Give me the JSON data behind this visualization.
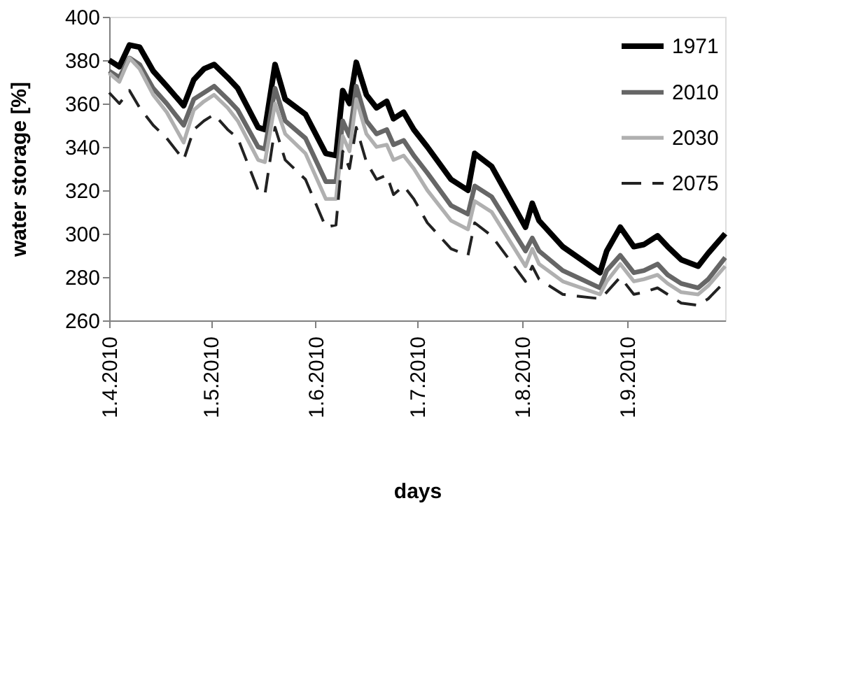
{
  "chart_data": {
    "type": "line",
    "xlabel": "days",
    "ylabel": "water storage [%]",
    "x": [
      "2010-04-01",
      "2010-04-04",
      "2010-04-07",
      "2010-04-10",
      "2010-04-14",
      "2010-04-18",
      "2010-04-23",
      "2010-04-26",
      "2010-04-29",
      "2010-05-02",
      "2010-05-06",
      "2010-05-09",
      "2010-05-15",
      "2010-05-17",
      "2010-05-20",
      "2010-05-23",
      "2010-05-29",
      "2010-06-04",
      "2010-06-07",
      "2010-06-09",
      "2010-06-11",
      "2010-06-13",
      "2010-06-16",
      "2010-06-19",
      "2010-06-22",
      "2010-06-24",
      "2010-06-27",
      "2010-06-30",
      "2010-07-04",
      "2010-07-11",
      "2010-07-16",
      "2010-07-18",
      "2010-07-23",
      "2010-08-02",
      "2010-08-04",
      "2010-08-06",
      "2010-08-13",
      "2010-08-24",
      "2010-08-26",
      "2010-08-30",
      "2010-09-03",
      "2010-09-06",
      "2010-09-10",
      "2010-09-13",
      "2010-09-17",
      "2010-09-22",
      "2010-09-25",
      "2010-09-30"
    ],
    "series": [
      {
        "name": "1971",
        "color": "#000000",
        "line_style": "solid",
        "values": [
          380,
          377,
          387,
          386,
          375,
          368,
          359,
          371,
          376,
          378,
          372,
          367,
          349,
          348,
          378,
          362,
          355,
          337,
          336,
          366,
          360,
          379,
          364,
          358,
          361,
          353,
          356,
          348,
          340,
          325,
          320,
          337,
          331,
          303,
          314,
          306,
          294,
          282,
          292,
          303,
          294,
          295,
          299,
          294,
          288,
          285,
          291,
          300
        ]
      },
      {
        "name": "2010",
        "color": "#666666",
        "line_style": "solid",
        "values": [
          375,
          372,
          381,
          378,
          367,
          360,
          350,
          362,
          365,
          368,
          362,
          357,
          340,
          339,
          367,
          352,
          344,
          324,
          324,
          352,
          345,
          368,
          352,
          346,
          348,
          341,
          343,
          336,
          328,
          313,
          309,
          322,
          317,
          292,
          298,
          292,
          283,
          275,
          283,
          290,
          282,
          283,
          286,
          281,
          277,
          275,
          279,
          289
        ]
      },
      {
        "name": "2030",
        "color": "#b0b0b0",
        "line_style": "solid",
        "values": [
          374,
          370,
          381,
          376,
          364,
          356,
          342,
          357,
          361,
          364,
          358,
          352,
          334,
          333,
          360,
          346,
          337,
          316,
          316,
          345,
          338,
          362,
          346,
          340,
          341,
          334,
          336,
          330,
          320,
          306,
          302,
          315,
          310,
          285,
          293,
          286,
          278,
          272,
          278,
          286,
          278,
          279,
          281,
          277,
          273,
          272,
          276,
          285
        ]
      },
      {
        "name": "2075",
        "color": "#222222",
        "line_style": "dashed",
        "values": [
          365,
          360,
          366,
          358,
          350,
          344,
          334,
          348,
          352,
          355,
          348,
          344,
          320,
          318,
          349,
          334,
          325,
          303,
          304,
          338,
          330,
          349,
          333,
          325,
          327,
          318,
          322,
          316,
          305,
          293,
          290,
          305,
          299,
          278,
          285,
          279,
          272,
          270,
          273,
          280,
          272,
          273,
          275,
          272,
          268,
          267,
          270,
          278
        ]
      }
    ],
    "xlim": [
      "2010-04-01",
      "2010-09-30"
    ],
    "xticks": [
      {
        "value": "2010-04-01",
        "label": "1.4.2010"
      },
      {
        "value": "2010-05-01",
        "label": "1.5.2010"
      },
      {
        "value": "2010-06-01",
        "label": "1.6.2010"
      },
      {
        "value": "2010-07-01",
        "label": "1.7.2010"
      },
      {
        "value": "2010-08-01",
        "label": "1.8.2010"
      },
      {
        "value": "2010-09-01",
        "label": "1.9.2010"
      }
    ],
    "ylim": [
      260,
      400
    ],
    "yticks": [
      260,
      280,
      300,
      320,
      340,
      360,
      380,
      400
    ],
    "grid": false,
    "legend": "top right",
    "marker": "none"
  }
}
